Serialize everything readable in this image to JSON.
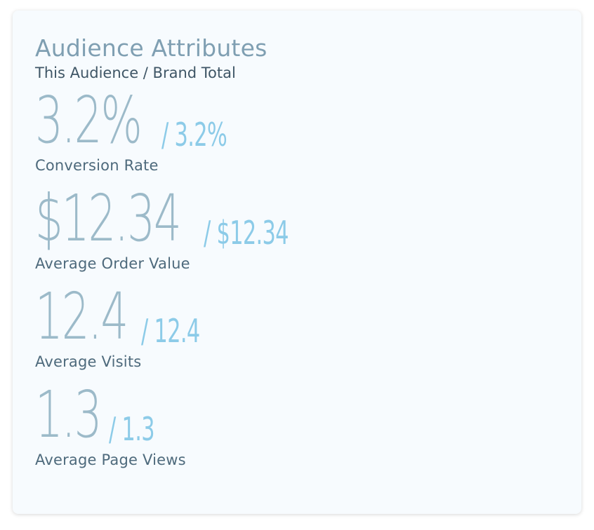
{
  "card": {
    "title": "Audience Attributes",
    "subtitle": "This Audience / Brand Total"
  },
  "metrics": [
    {
      "value": "3.2%",
      "total": "/ 3.2%",
      "label": "Conversion Rate"
    },
    {
      "value": "$12.34",
      "total": "/ $12.34",
      "label": "Average Order Value"
    },
    {
      "value": "12.4",
      "total": "/ 12.4",
      "label": "Average Visits"
    },
    {
      "value": "1.3",
      "total": "/ 1.3",
      "label": "Average Page Views"
    }
  ],
  "colors": {
    "title": "#7f9fb2",
    "subtitle": "#3f5666",
    "value": "#9cbac9",
    "total": "#8ccbe8",
    "label": "#4e6a7c",
    "card_background": "#f7fbfe"
  }
}
